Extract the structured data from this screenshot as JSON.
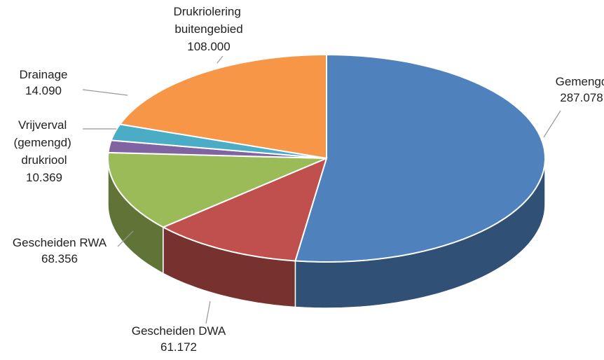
{
  "chart_data": {
    "type": "pie3d",
    "categories": [
      "Gemengd",
      "Gescheiden DWA",
      "Gescheiden RWA",
      "Vrijverval (gemengd) drukriool",
      "Drainage",
      "Drukriolering buitengebied"
    ],
    "values": [
      287078,
      61172,
      68356,
      10369,
      14090,
      108000
    ],
    "value_labels": [
      "287.078",
      "61.172",
      "68.356",
      "10.369",
      "14.090",
      "108.000"
    ],
    "colors": [
      "#4f81bd",
      "#c0504d",
      "#9bbb59",
      "#8064a2",
      "#4bacc6",
      "#f79646"
    ]
  }
}
